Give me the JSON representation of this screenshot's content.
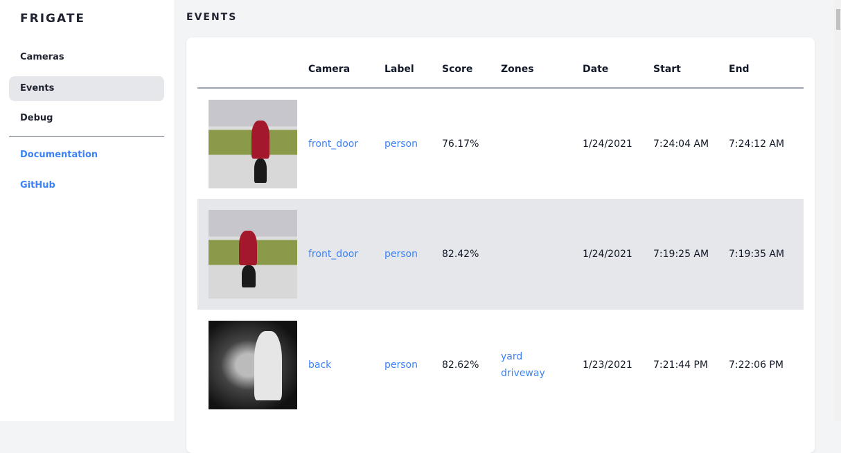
{
  "brand": "FRIGATE",
  "sidebar": {
    "items": [
      {
        "label": "Cameras"
      },
      {
        "label": "Events"
      },
      {
        "label": "Debug"
      }
    ],
    "links": [
      {
        "label": "Documentation"
      },
      {
        "label": "GitHub"
      }
    ]
  },
  "page_title": "EVENTS",
  "table": {
    "headers": [
      "",
      "Camera",
      "Label",
      "Score",
      "Zones",
      "Date",
      "Start",
      "End"
    ],
    "rows": [
      {
        "camera": "front_door",
        "label": "person",
        "score": "76.17%",
        "zones": [
          "",
          ""
        ],
        "date": "1/24/2021",
        "start": "7:24:04 AM",
        "end": "7:24:12 AM"
      },
      {
        "camera": "front_door",
        "label": "person",
        "score": "82.42%",
        "zones": [
          "",
          ""
        ],
        "date": "1/24/2021",
        "start": "7:19:25 AM",
        "end": "7:19:35 AM"
      },
      {
        "camera": "back",
        "label": "person",
        "score": "82.62%",
        "zones": [
          "yard",
          "driveway"
        ],
        "date": "1/23/2021",
        "start": "7:21:44 PM",
        "end": "7:22:06 PM"
      }
    ]
  },
  "colors": {
    "accent": "#3b82f6",
    "active_bg": "#e5e7eb"
  }
}
